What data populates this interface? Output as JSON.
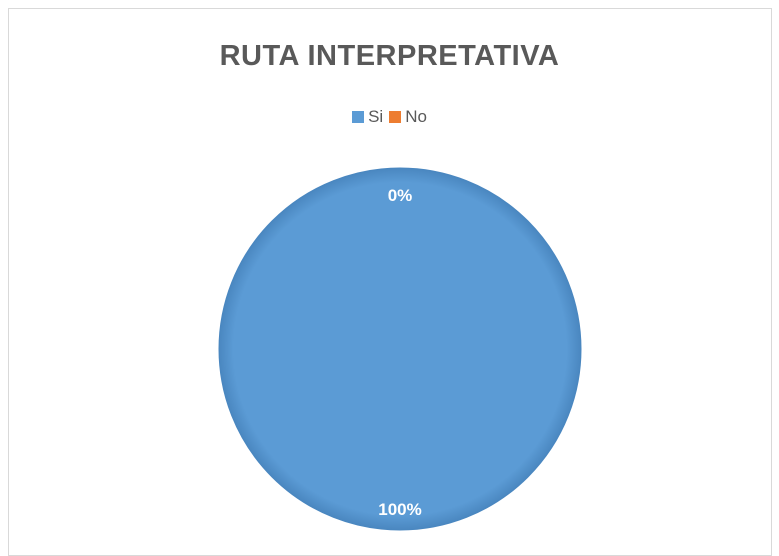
{
  "chart_data": {
    "type": "pie",
    "title": "RUTA INTERPRETATIVA",
    "categories": [
      "Si",
      "No"
    ],
    "values": [
      100,
      0
    ],
    "data_labels": [
      "100%",
      "0%"
    ],
    "colors": [
      "#5b9bd5",
      "#ed7d31"
    ],
    "legend_placement": "top",
    "xlabel": "",
    "ylabel": ""
  }
}
